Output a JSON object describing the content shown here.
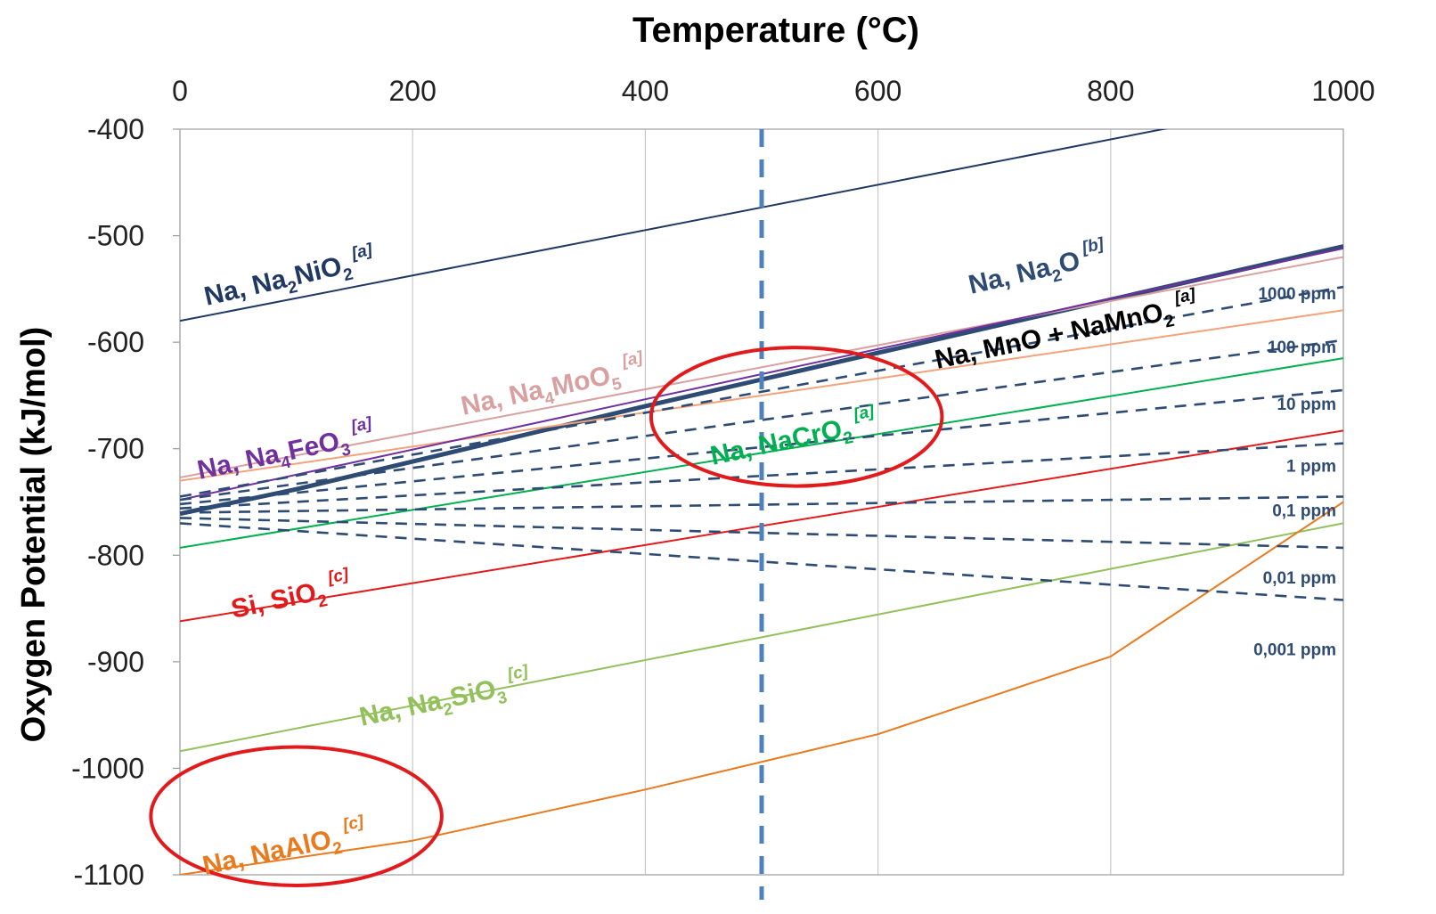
{
  "chart_data": {
    "type": "line",
    "title": "",
    "xlabel": "Temperature (°C)",
    "ylabel": "Oxygen Potential (kJ/mol)",
    "xlim": [
      0,
      1000
    ],
    "ylim": [
      -1100,
      -400
    ],
    "x_ticks": [
      "0",
      "200",
      "400",
      "600",
      "800",
      "1000"
    ],
    "y_ticks": [
      "-400",
      "-500",
      "-600",
      "-700",
      "-800",
      "-900",
      "-1000",
      "-1100"
    ],
    "x_axis_position": "top",
    "grid": "vertical major gridlines",
    "series": [
      {
        "name": "Na, Na2NiO2 [a]",
        "color": "#1f3864",
        "style": "solid",
        "x": [
          0,
          1000
        ],
        "y": [
          -580,
          -367
        ]
      },
      {
        "name": "Na, Na2O [b]",
        "color": "#2e4b73",
        "style": "solid-thick",
        "x": [
          0,
          100,
          200,
          300,
          400,
          500,
          600,
          700,
          800,
          900,
          1000
        ],
        "y": [
          -761,
          -738,
          -712,
          -686,
          -660,
          -635,
          -610,
          -585,
          -560,
          -535,
          -510
        ]
      },
      {
        "name": "Na, MnO + NaMnO2 [a]",
        "color": "#f2a379",
        "style": "solid",
        "x": [
          0,
          1000
        ],
        "y": [
          -730,
          -570
        ]
      },
      {
        "name": "Na, Na4MoO5 [a]",
        "color": "#d9a0a0",
        "style": "solid",
        "x": [
          0,
          1000
        ],
        "y": [
          -727,
          -520
        ]
      },
      {
        "name": "Na, Na4FeO3 [a]",
        "color": "#7030a0",
        "style": "solid",
        "x": [
          0,
          1000
        ],
        "y": [
          -748,
          -512
        ]
      },
      {
        "name": "Na, NaCrO2 [a]",
        "color": "#00b050",
        "style": "solid",
        "x": [
          0,
          1000
        ],
        "y": [
          -793,
          -615
        ]
      },
      {
        "name": "Si, SiO2 [c]",
        "color": "#e31a1c",
        "style": "solid",
        "x": [
          0,
          1000
        ],
        "y": [
          -862,
          -683
        ]
      },
      {
        "name": "Na, Na2SiO3 [c]",
        "color": "#92c05a",
        "style": "solid",
        "x": [
          0,
          1000
        ],
        "y": [
          -984,
          -770
        ]
      },
      {
        "name": "Na, NaAlO2 [c]",
        "color": "#e97a1e",
        "style": "solid",
        "x": [
          0,
          200,
          400,
          600,
          800,
          1000
        ],
        "y": [
          -1100,
          -1068,
          -1020,
          -968,
          -895,
          -750
        ]
      },
      {
        "name": "1000 ppm",
        "color": "#2e4b73",
        "style": "dashed",
        "x": [
          0,
          1000
        ],
        "y": [
          -745,
          -548
        ]
      },
      {
        "name": "100 ppm",
        "color": "#2e4b73",
        "style": "dashed",
        "x": [
          0,
          1000
        ],
        "y": [
          -748,
          -598
        ]
      },
      {
        "name": "10 ppm",
        "color": "#2e4b73",
        "style": "dashed",
        "x": [
          0,
          1000
        ],
        "y": [
          -752,
          -645
        ]
      },
      {
        "name": "1 ppm",
        "color": "#2e4b73",
        "style": "dashed",
        "x": [
          0,
          1000
        ],
        "y": [
          -756,
          -695
        ]
      },
      {
        "name": "0,1 ppm",
        "color": "#2e4b73",
        "style": "dashed",
        "x": [
          0,
          1000
        ],
        "y": [
          -760,
          -745
        ]
      },
      {
        "name": "0,01 ppm",
        "color": "#2e4b73",
        "style": "dashed",
        "x": [
          0,
          1000
        ],
        "y": [
          -765,
          -793
        ]
      },
      {
        "name": "0,001 ppm",
        "color": "#2e4b73",
        "style": "dashed",
        "x": [
          0,
          1000
        ],
        "y": [
          -770,
          -842
        ]
      }
    ],
    "reference_line": {
      "x": 500,
      "color": "#4f81bd",
      "style": "dashed-thick"
    },
    "highlight_ellipses": [
      {
        "around": "Na, NaCrO2",
        "color": "#e31a1c",
        "cx": 530,
        "cy": -670,
        "rx": 125,
        "ry": 65
      },
      {
        "around": "Na, NaAlO2",
        "color": "#e31a1c",
        "cx": 100,
        "cy": -1045,
        "rx": 125,
        "ry": 65
      }
    ]
  },
  "labels": {
    "na2nio2": {
      "a": "Na, Na",
      "sub": "2",
      "b": "NiO",
      "sub2": "2",
      "ref": "[a]",
      "color": "#1f3864"
    },
    "na2o": {
      "a": "Na, Na",
      "sub": "2",
      "b": "O",
      "ref": "[b]",
      "color": "#2e4b73"
    },
    "mno": {
      "a": "Na, MnO + NaMnO",
      "sub": "2",
      "ref": "[a]",
      "color": "#000000"
    },
    "na4moo5": {
      "a": "Na, Na",
      "sub": "4",
      "b": "MoO",
      "sub2": "5",
      "ref": "[a]",
      "color": "#d9a0a0"
    },
    "na4feo3": {
      "a": "Na, Na",
      "sub": "4",
      "b": "FeO",
      "sub2": "3",
      "ref": "[a]",
      "color": "#7030a0"
    },
    "nacro2": {
      "a": "Na, NaCrO",
      "sub": "2",
      "ref": "[a]",
      "color": "#00b050"
    },
    "sio2": {
      "a": "Si, SiO",
      "sub": "2",
      "ref": "[c]",
      "color": "#e31a1c"
    },
    "na2sio3": {
      "a": "Na, Na",
      "sub": "2",
      "b": "SiO",
      "sub2": "3",
      "ref": "[c]",
      "color": "#92c05a"
    },
    "naalo2": {
      "a": "Na, NaAlO",
      "sub": "2",
      "ref": "[c]",
      "color": "#e97a1e"
    }
  }
}
